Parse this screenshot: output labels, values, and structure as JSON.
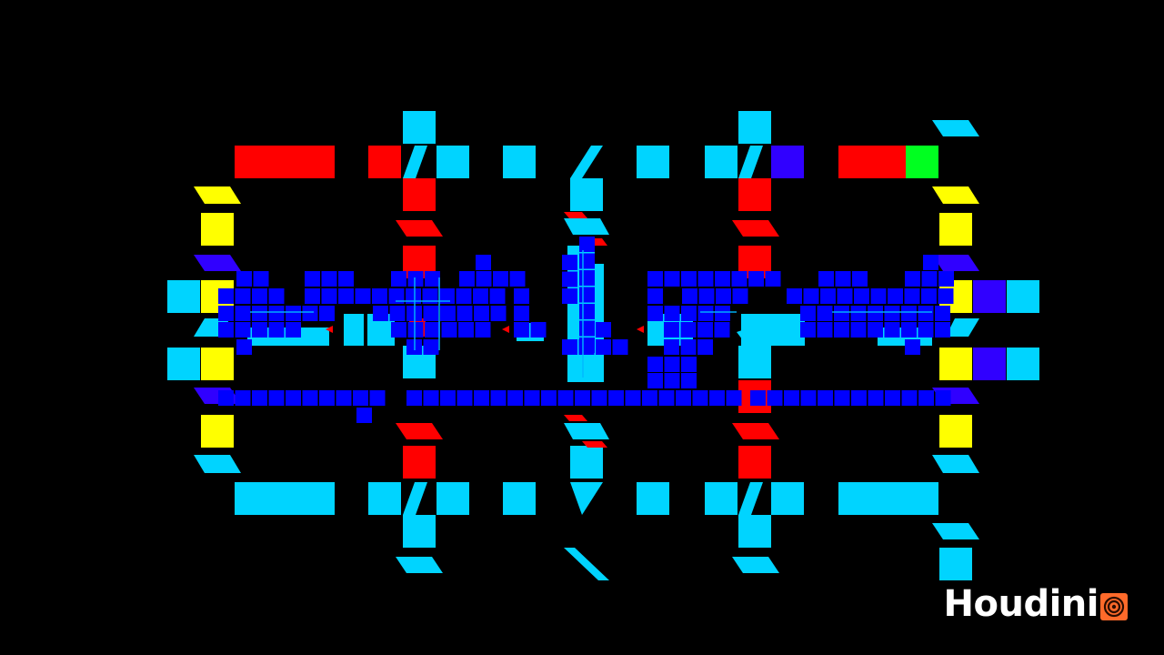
{
  "viewport": {
    "name": "houdini-viewport",
    "background_color": "#000000"
  },
  "palette": {
    "cyan": "#00d4ff",
    "red": "#ff0000",
    "yellow": "#ffff00",
    "blue": "#0000ff",
    "violet": "#3000ff",
    "green": "#00ff20",
    "grid_line": "#00b8ff"
  },
  "watermark": {
    "text": "Houdini",
    "icon": "houdini-swirl-icon",
    "icon_color": "#ff7a30"
  }
}
